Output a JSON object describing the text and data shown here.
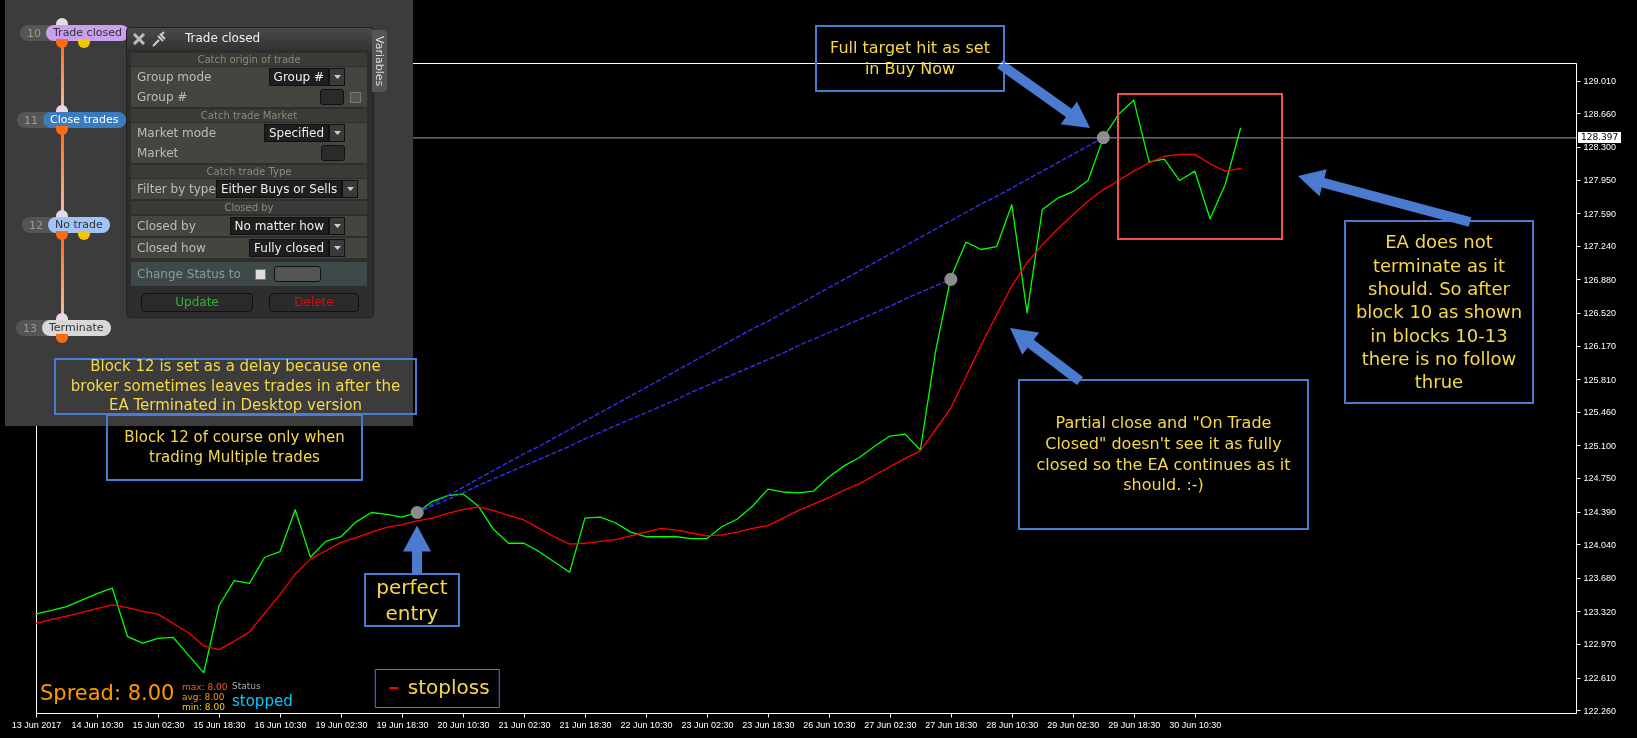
{
  "chart_data": [
    {
      "type": "line",
      "categories": [
        "13 Jun 2017",
        null,
        null,
        null,
        "14 Jun 10:30",
        null,
        null,
        null,
        "15 Jun 02:30",
        null,
        null,
        null,
        "15 Jun 18:30",
        null,
        null,
        null,
        "16 Jun 10:30",
        null,
        null,
        null,
        "19 Jun 02:30",
        null,
        null,
        null,
        "19 Jun 18:30",
        null,
        null,
        null,
        "20 Jun 10:30",
        null,
        null,
        null,
        "21 Jun 02:30",
        null,
        null,
        null,
        "21 Jun 18:30",
        null,
        null,
        null,
        "22 Jun 10:30",
        null,
        null,
        null,
        "23 Jun 02:30",
        null,
        null,
        null,
        "23 Jun 18:30",
        null,
        null,
        null,
        "26 Jun 10:30",
        null,
        null,
        null,
        "27 Jun 02:30",
        null,
        null,
        null,
        "27 Jun 18:30",
        null,
        null,
        null,
        "28 Jun 10:30",
        null,
        null,
        null,
        "29 Jun 02:30",
        null,
        null,
        null,
        "29 Jun 18:30",
        null,
        null,
        null,
        "30 Jun 10:30",
        null,
        null,
        null,
        null,
        null,
        null,
        null,
        null,
        null,
        null,
        null,
        null,
        null,
        null,
        null,
        null,
        null,
        null,
        null,
        null,
        null,
        null,
        null,
        null,
        null
      ],
      "ylim": [
        122.23,
        129.2
      ],
      "yticks": [
        {
          "value": 129.01,
          "label": "129.010"
        },
        {
          "value": 128.66,
          "label": "128.660"
        },
        {
          "value": 128.3,
          "label": "128.300"
        },
        {
          "value": 127.95,
          "label": "127.950"
        },
        {
          "value": 127.59,
          "label": "127.590"
        },
        {
          "value": 127.24,
          "label": "127.240"
        },
        {
          "value": 126.88,
          "label": "126.880"
        },
        {
          "value": 126.52,
          "label": "126.520"
        },
        {
          "value": 126.17,
          "label": "126.170"
        },
        {
          "value": 125.81,
          "label": "125.810"
        },
        {
          "value": 125.46,
          "label": "125.460"
        },
        {
          "value": 125.1,
          "label": "125.100"
        },
        {
          "value": 124.75,
          "label": "124.750"
        },
        {
          "value": 124.39,
          "label": "124.390"
        },
        {
          "value": 124.04,
          "label": "124.040"
        },
        {
          "value": 123.68,
          "label": "123.680"
        },
        {
          "value": 123.32,
          "label": "123.320"
        },
        {
          "value": 122.97,
          "label": "122.970"
        },
        {
          "value": 122.61,
          "label": "122.610"
        },
        {
          "value": 122.26,
          "label": "122.260"
        }
      ],
      "legend": "bottom",
      "series": [
        {
          "color": "#00ff00",
          "values": [
            123.29,
            123.33,
            123.37,
            123.44,
            123.51,
            123.57,
            123.05,
            122.98,
            123.03,
            123.04,
            122.85,
            122.66,
            123.38,
            123.65,
            123.62,
            123.9,
            123.96,
            124.41,
            123.9,
            124.07,
            124.12,
            124.28,
            124.38,
            124.36,
            124.33,
            124.38,
            124.5,
            124.56,
            124.58,
            124.45,
            124.2,
            124.05,
            124.05,
            123.96,
            123.85,
            123.74,
            124.32,
            124.33,
            124.27,
            124.17,
            124.12,
            124.12,
            124.12,
            124.1,
            124.1,
            124.23,
            124.31,
            124.45,
            124.63,
            124.6,
            124.59,
            124.61,
            124.76,
            124.88,
            124.97,
            125.09,
            125.2,
            125.22,
            125.05,
            126.11,
            126.9,
            127.28,
            127.2,
            127.23,
            127.68,
            126.52,
            127.63,
            127.75,
            127.82,
            127.94,
            128.4,
            128.65,
            128.8,
            128.14,
            128.17,
            127.94,
            128.04,
            127.53,
            127.9,
            128.5,
            null,
            null,
            null,
            null,
            null,
            null,
            null,
            null,
            null,
            null,
            null,
            null,
            null,
            null,
            null,
            null,
            null,
            null,
            null,
            null,
            null,
            null
          ]
        },
        {
          "name": "stoploss",
          "color": "#ff0000",
          "values": [
            123.19,
            123.23,
            123.27,
            123.31,
            123.35,
            123.39,
            123.36,
            123.32,
            123.29,
            123.19,
            123.09,
            122.95,
            122.91,
            123.0,
            123.1,
            123.3,
            123.5,
            123.72,
            123.88,
            123.97,
            124.06,
            124.11,
            124.17,
            124.22,
            124.25,
            124.29,
            124.32,
            124.37,
            124.41,
            124.44,
            124.4,
            124.35,
            124.3,
            124.21,
            124.12,
            124.04,
            124.05,
            124.07,
            124.09,
            124.13,
            124.17,
            124.21,
            124.19,
            124.16,
            124.13,
            124.14,
            124.17,
            124.21,
            124.24,
            124.32,
            124.4,
            124.47,
            124.54,
            124.62,
            124.69,
            124.78,
            124.87,
            124.96,
            125.04,
            125.27,
            125.5,
            125.84,
            126.18,
            126.5,
            126.81,
            127.06,
            127.25,
            127.42,
            127.57,
            127.72,
            127.84,
            127.94,
            128.04,
            128.13,
            128.2,
            128.22,
            128.22,
            128.12,
            128.04,
            128.07,
            null,
            null,
            null,
            null,
            null,
            null,
            null,
            null,
            null,
            null,
            null,
            null,
            null,
            null,
            null,
            null,
            null,
            null,
            null,
            null,
            null,
            null
          ]
        },
        {
          "color": "#3333ff",
          "line_style": "dashed",
          "values": [
            null,
            null,
            null,
            null,
            null,
            null,
            null,
            null,
            null,
            null,
            null,
            null,
            null,
            null,
            null,
            null,
            null,
            null,
            null,
            null,
            null,
            null,
            null,
            null,
            null,
            124.38,
            124.47,
            124.56,
            124.65,
            124.74,
            124.83,
            124.92,
            125.01,
            125.09,
            125.18,
            125.27,
            125.36,
            125.45,
            125.54,
            125.63,
            125.72,
            125.81,
            125.9,
            125.99,
            126.08,
            126.17,
            126.26,
            126.35,
            126.43,
            126.52,
            126.61,
            126.7,
            126.79,
            126.88,
            126.97,
            127.06,
            127.15,
            127.24,
            127.33,
            127.42,
            127.51,
            127.6,
            127.69,
            127.77,
            127.86,
            127.95,
            128.04,
            128.13,
            128.22,
            128.31,
            128.4,
            null,
            null,
            null,
            null,
            null,
            null,
            null,
            null,
            null,
            null,
            null,
            null,
            null,
            null,
            null,
            null,
            null,
            null,
            null,
            null,
            null,
            null,
            null,
            null,
            null,
            null,
            null,
            null,
            null,
            null,
            null
          ]
        },
        {
          "color": "#3333ff",
          "line_style": "dashed",
          "values": [
            null,
            null,
            null,
            null,
            null,
            null,
            null,
            null,
            null,
            null,
            null,
            null,
            null,
            null,
            null,
            null,
            null,
            null,
            null,
            null,
            null,
            null,
            null,
            null,
            null,
            124.38,
            124.45,
            124.52,
            124.59,
            124.67,
            124.74,
            124.81,
            124.88,
            124.95,
            125.02,
            125.09,
            125.17,
            125.24,
            125.31,
            125.38,
            125.45,
            125.52,
            125.59,
            125.67,
            125.74,
            125.81,
            125.88,
            125.95,
            126.02,
            126.09,
            126.17,
            126.24,
            126.31,
            126.38,
            126.45,
            126.52,
            126.59,
            126.67,
            126.74,
            126.81,
            126.88,
            null,
            null,
            null,
            null,
            null,
            null,
            null,
            null,
            null,
            null,
            null,
            null,
            null,
            null,
            null,
            null,
            null,
            null,
            null,
            null,
            null,
            null,
            null,
            null,
            null,
            null,
            null,
            null,
            null,
            null,
            null,
            null,
            null,
            null,
            null,
            null,
            null,
            null,
            null,
            null,
            null
          ]
        },
        {
          "type": "scatter",
          "marker": "circle",
          "color": "#8c8c8c",
          "values": [
            null,
            null,
            null,
            null,
            null,
            null,
            null,
            null,
            null,
            null,
            null,
            null,
            null,
            null,
            null,
            null,
            null,
            null,
            null,
            null,
            null,
            null,
            null,
            null,
            null,
            124.38,
            null,
            null,
            null,
            null,
            null,
            null,
            null,
            null,
            null,
            null,
            null,
            null,
            null,
            null,
            null,
            null,
            null,
            null,
            null,
            null,
            null,
            null,
            null,
            null,
            null,
            null,
            null,
            null,
            null,
            null,
            null,
            null,
            null,
            null,
            126.88,
            null,
            null,
            null,
            null,
            null,
            null,
            null,
            null,
            null,
            128.4,
            null,
            null,
            null,
            null,
            null,
            null,
            null,
            null,
            null,
            null,
            null,
            null,
            null,
            null,
            null,
            null,
            null,
            null,
            null,
            null,
            null,
            null,
            null,
            null,
            null,
            null,
            null,
            null,
            null,
            null,
            null
          ]
        }
      ],
      "ref_lines": [
        {
          "axis": "y",
          "value": 128.397,
          "label": "128.397",
          "color": "#8fa3b8"
        }
      ],
      "annotations": [
        "Full target hit as set in Buy Now",
        "Partial close and \"On Trade Closed\" doesn't see it as fully closed so the EA continues as it should. :-)",
        "EA does not terminate as it should. So after block 10 as shown in blocks 10-13 there is no follow thrue",
        {
          "text": "perfect entry",
          "y": 124.24
        },
        "Block 12 is set as a delay because one broker sometimes leaves trades in after the EA Terminated in Desktop version",
        "Block 12 of course only when trading Multiple trades",
        "Spread: 8.00",
        "max: 8.00",
        "avg: 8.00",
        "min: 8.00",
        "Status",
        "stopped"
      ]
    },
    {
      "type": "other",
      "annotations": [
        "10",
        "Trade closed",
        "11",
        "Close trades",
        "12",
        "No trade",
        "13",
        "Terminate",
        "Trade closed",
        "Variables",
        "Catch origin of trade",
        "Group mode",
        "Group #",
        "Group #",
        "Catch trade Market",
        "Market mode",
        "Specified",
        "Market",
        "Catch trade Type",
        "Filter by type",
        "Either Buys or Sells",
        "Closed by",
        "Closed by",
        "No matter how",
        "Closed how",
        "Fully closed",
        "Change Status to",
        "Update",
        "Delete"
      ]
    }
  ]
}
